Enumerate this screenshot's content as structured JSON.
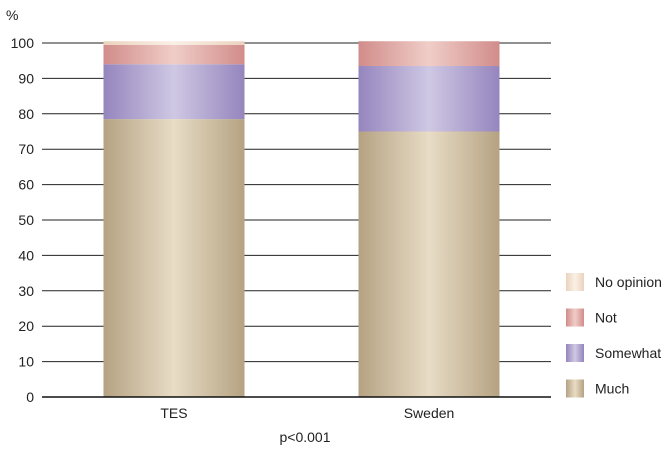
{
  "chart_data": {
    "type": "bar",
    "stacked": true,
    "ylabel": "%",
    "ylim": [
      0,
      100
    ],
    "yticks": [
      0,
      10,
      20,
      30,
      40,
      50,
      60,
      70,
      80,
      90,
      100
    ],
    "categories": [
      "TES",
      "Sweden"
    ],
    "series": [
      {
        "name": "Much",
        "values": [
          78.5,
          75
        ],
        "color": "#c2b294"
      },
      {
        "name": "Somewhat",
        "values": [
          15.5,
          18.5
        ],
        "color": "#a99bcc"
      },
      {
        "name": "Not",
        "values": [
          5.5,
          7
        ],
        "color": "#d99d9b"
      },
      {
        "name": "No opinion",
        "values": [
          1,
          0
        ],
        "color": "#f0dcc8"
      }
    ],
    "legend_order": [
      "No opinion",
      "Not",
      "Somewhat",
      "Much"
    ],
    "legend_position": "right",
    "grid": true,
    "annotation": "p<0.001"
  }
}
